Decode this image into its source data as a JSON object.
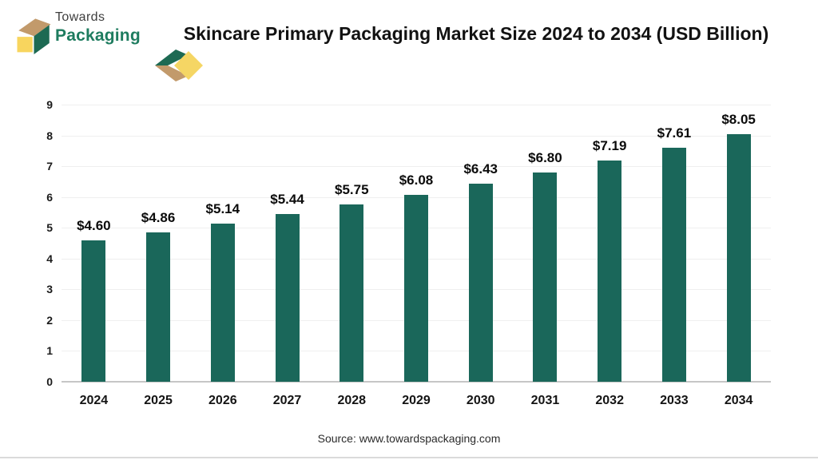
{
  "header": {
    "logo": {
      "line1": "Towards",
      "line2": "Packaging"
    },
    "title": "Skincare Primary Packaging Market Size 2024 to 2034 (USD Billion)"
  },
  "brand": {
    "green": "#1d6a53",
    "tan": "#c29a6b",
    "yellow": "#f8d55e",
    "underline_yellow": "#f5d664",
    "logo_text_green": "#1e7c5f"
  },
  "icons": {
    "logo_box": "isometric-open-box",
    "header_decoration": "chevron-diamond-arrow"
  },
  "chart_data": {
    "type": "bar",
    "title": "Skincare Primary Packaging Market Size 2024 to 2034 (USD Billion)",
    "categories": [
      "2024",
      "2025",
      "2026",
      "2027",
      "2028",
      "2029",
      "2030",
      "2031",
      "2032",
      "2033",
      "2034"
    ],
    "values": [
      4.6,
      4.86,
      5.14,
      5.44,
      5.75,
      6.08,
      6.43,
      6.8,
      7.19,
      7.61,
      8.05
    ],
    "value_labels": [
      "$4.60",
      "$4.86",
      "$5.14",
      "$5.44",
      "$5.75",
      "$6.08",
      "$6.43",
      "$6.80",
      "$7.19",
      "$7.61",
      "$8.05"
    ],
    "xlabel": "",
    "ylabel": "",
    "ylim": [
      0,
      9
    ],
    "yticks": [
      0,
      1,
      2,
      3,
      4,
      5,
      6,
      7,
      8,
      9
    ],
    "grid": true,
    "legend": "none",
    "bar_color": "#1a675a"
  },
  "footer": {
    "source": "Source: www.towardspackaging.com"
  }
}
